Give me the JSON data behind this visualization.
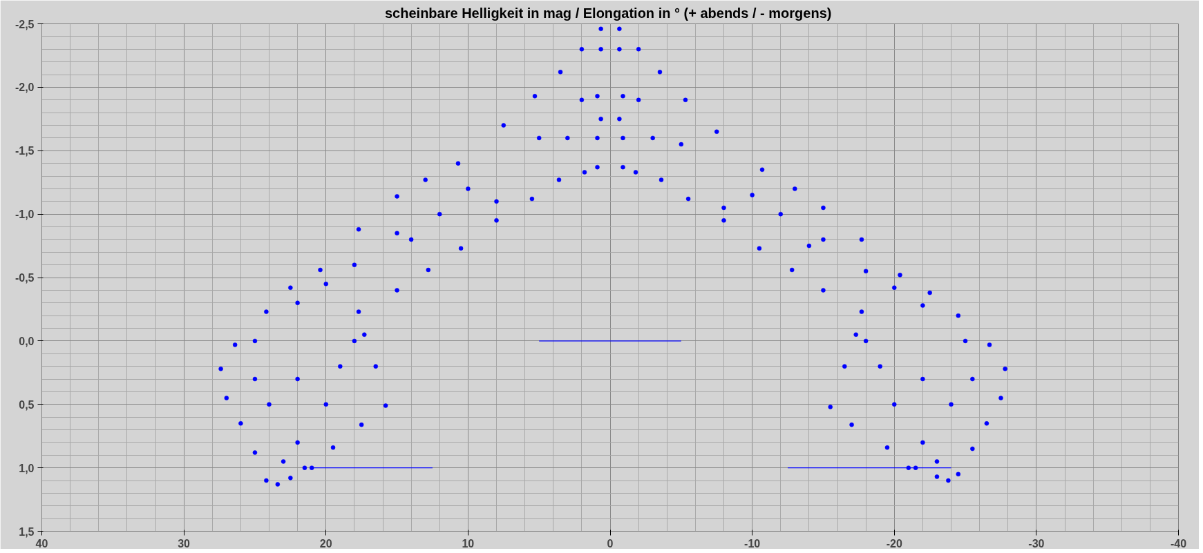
{
  "chart_data": {
    "type": "scatter",
    "title": "scheinbare Helligkeit in mag  / Elongation in ° (+ abends / - morgens)",
    "xlim": [
      40,
      -40
    ],
    "xticks": [
      40,
      30,
      20,
      10,
      0,
      -10,
      -20,
      -30,
      -40
    ],
    "ylim": [
      1.5,
      -2.5
    ],
    "yticks": [
      {
        "value": -2.5,
        "label": "-2,5"
      },
      {
        "value": -2.0,
        "label": "-2,0"
      },
      {
        "value": -1.5,
        "label": "-1,5"
      },
      {
        "value": -1.0,
        "label": "-1,0"
      },
      {
        "value": -0.5,
        "label": "-0,5"
      },
      {
        "value": 0.0,
        "label": "0,0"
      },
      {
        "value": 0.5,
        "label": "0,5"
      },
      {
        "value": 1.0,
        "label": "1,0"
      },
      {
        "value": 1.5,
        "label": "1,5"
      }
    ],
    "grid": true,
    "series": [
      {
        "marker": "circle",
        "color": "#0000ff",
        "x": [
          0.65,
          2.0,
          3.5,
          5.3,
          7.5,
          10.7,
          13.0,
          15.0,
          17.7,
          20.4,
          22.5,
          24.2,
          26.4,
          27.4,
          27.0,
          26.0,
          25.0,
          24.2,
          23.4,
          22.5,
          21.5,
          19.5,
          17.5,
          15.8,
          16.5,
          17.3,
          17.7,
          15.0,
          12.8,
          10.5,
          8.0,
          5.5,
          3.6,
          1.8,
          0.9,
          0.9,
          0.65,
          0.9,
          0.65,
          10.0,
          15.0,
          20.0,
          5.0,
          2.0,
          12.0,
          18.0,
          22.0,
          25.0,
          22.0,
          20.0,
          24.0,
          22.0,
          19.0,
          18.0,
          25.0,
          21.0,
          23.0,
          8.0,
          14.0,
          3.0
        ],
        "values": [
          -2.46,
          -2.3,
          -2.12,
          -1.93,
          -1.7,
          -1.4,
          -1.27,
          -1.14,
          -0.88,
          -0.56,
          -0.42,
          -0.23,
          0.03,
          0.22,
          0.45,
          0.65,
          0.88,
          1.1,
          1.13,
          1.08,
          1.0,
          0.84,
          0.66,
          0.51,
          0.2,
          -0.05,
          -0.23,
          -0.4,
          -0.56,
          -0.73,
          -0.95,
          -1.12,
          -1.27,
          -1.33,
          -1.37,
          -1.6,
          -1.75,
          -1.93,
          -2.3,
          -1.2,
          -0.85,
          -0.45,
          -1.6,
          -1.9,
          -1.0,
          -0.6,
          -0.3,
          0.0,
          0.3,
          0.5,
          0.5,
          0.8,
          0.2,
          0.0,
          0.3,
          1.0,
          0.95,
          -1.1,
          -0.8,
          -1.6
        ]
      },
      {
        "marker": "circle",
        "color": "#0000ff",
        "x": [
          -0.65,
          -2.0,
          -3.5,
          -5.3,
          -7.5,
          -10.7,
          -13.0,
          -15.0,
          -17.7,
          -20.4,
          -22.5,
          -24.5,
          -26.7,
          -27.8,
          -27.5,
          -26.5,
          -25.5,
          -24.5,
          -23.8,
          -23.0,
          -21.5,
          -19.5,
          -17.0,
          -15.5,
          -16.5,
          -17.3,
          -17.7,
          -15.0,
          -12.8,
          -10.5,
          -8.0,
          -5.5,
          -3.6,
          -1.8,
          -0.9,
          -0.9,
          -0.65,
          -0.9,
          -0.65,
          -10.0,
          -15.0,
          -20.0,
          -5.0,
          -2.0,
          -12.0,
          -18.0,
          -22.0,
          -25.0,
          -22.0,
          -20.0,
          -24.0,
          -22.0,
          -19.0,
          -18.0,
          -25.5,
          -21.0,
          -23.0,
          -8.0,
          -14.0,
          -3.0
        ],
        "values": [
          -2.46,
          -2.3,
          -2.12,
          -1.9,
          -1.65,
          -1.35,
          -1.2,
          -1.05,
          -0.8,
          -0.52,
          -0.38,
          -0.2,
          0.03,
          0.22,
          0.45,
          0.65,
          0.85,
          1.05,
          1.1,
          1.07,
          1.0,
          0.84,
          0.66,
          0.52,
          0.2,
          -0.05,
          -0.23,
          -0.4,
          -0.56,
          -0.73,
          -0.95,
          -1.12,
          -1.27,
          -1.33,
          -1.37,
          -1.6,
          -1.75,
          -1.93,
          -2.3,
          -1.15,
          -0.8,
          -0.42,
          -1.55,
          -1.9,
          -1.0,
          -0.55,
          -0.28,
          0.0,
          0.3,
          0.5,
          0.5,
          0.8,
          0.2,
          0.0,
          0.3,
          1.0,
          0.95,
          -1.05,
          -0.75,
          -1.6
        ]
      },
      {
        "type": "line",
        "color": "#0000ff",
        "x": [
          5,
          -5
        ],
        "values": [
          0.0,
          0.0
        ]
      },
      {
        "type": "line",
        "color": "#0000ff",
        "x": [
          21,
          12.5
        ],
        "values": [
          1.0,
          1.0
        ]
      },
      {
        "type": "line",
        "color": "#0000ff",
        "x": [
          -12.5,
          -24
        ],
        "values": [
          1.0,
          1.0
        ]
      }
    ]
  }
}
